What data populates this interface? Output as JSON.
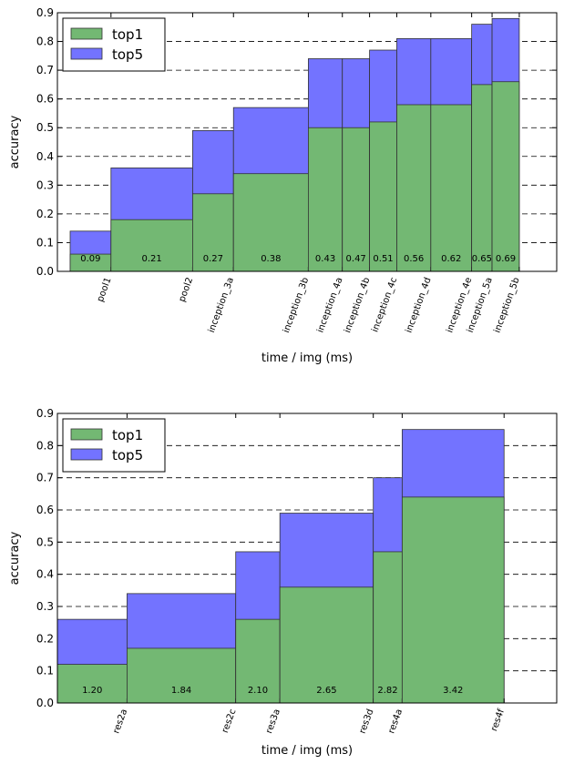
{
  "chart_data": [
    {
      "type": "bar",
      "stacked_overlay": true,
      "xlabel": "time / img (ms)",
      "ylabel": "accuracy",
      "ylim": [
        0,
        0.9
      ],
      "yticks": [
        "0.0",
        "0.1",
        "0.2",
        "0.3",
        "0.4",
        "0.5",
        "0.6",
        "0.7",
        "0.8",
        "0.9"
      ],
      "grid": "horizontal dashed",
      "legend_position": "top-left",
      "legend": [
        "top1",
        "top5"
      ],
      "categories": [
        "pool1",
        "pool2",
        "inception_3a",
        "inception_3b",
        "inception_4a",
        "inception_4b",
        "inception_4c",
        "inception_4d",
        "inception_4e",
        "inception_5a",
        "inception_5b"
      ],
      "x_start_ms": 0.03,
      "time_ms": [
        0.09,
        0.21,
        0.27,
        0.38,
        0.43,
        0.47,
        0.51,
        0.56,
        0.62,
        0.65,
        0.69
      ],
      "time_labels": [
        "0.09",
        "0.21",
        "0.27",
        "0.38",
        "0.43",
        "0.47",
        "0.51",
        "0.56",
        "0.62",
        "0.65",
        "0.69"
      ],
      "series": [
        {
          "name": "top1",
          "color": "#73b873",
          "values": [
            0.06,
            0.18,
            0.27,
            0.34,
            0.5,
            0.5,
            0.52,
            0.58,
            0.58,
            0.65,
            0.66
          ]
        },
        {
          "name": "top5",
          "color": "#7373ff",
          "values": [
            0.14,
            0.36,
            0.49,
            0.57,
            0.74,
            0.74,
            0.77,
            0.81,
            0.81,
            0.86,
            0.88
          ]
        }
      ]
    },
    {
      "type": "bar",
      "stacked_overlay": true,
      "xlabel": "time / img (ms)",
      "ylabel": "accuracy",
      "ylim": [
        0,
        0.9
      ],
      "yticks": [
        "0.0",
        "0.1",
        "0.2",
        "0.3",
        "0.4",
        "0.5",
        "0.6",
        "0.7",
        "0.8",
        "0.9"
      ],
      "grid": "horizontal dashed",
      "legend_position": "top-left",
      "legend": [
        "top1",
        "top5"
      ],
      "categories": [
        "res2a",
        "res2c",
        "res3a",
        "res3d",
        "res4a",
        "res4f"
      ],
      "x_start_ms": 0.79,
      "time_ms": [
        1.2,
        1.84,
        2.1,
        2.65,
        2.82,
        3.42
      ],
      "time_labels": [
        "1.20",
        "1.84",
        "2.10",
        "2.65",
        "2.82",
        "3.42"
      ],
      "series": [
        {
          "name": "top1",
          "color": "#73b873",
          "values": [
            0.12,
            0.17,
            0.26,
            0.36,
            0.47,
            0.64
          ]
        },
        {
          "name": "top5",
          "color": "#7373ff",
          "values": [
            0.26,
            0.34,
            0.47,
            0.59,
            0.7,
            0.85
          ]
        }
      ]
    }
  ]
}
